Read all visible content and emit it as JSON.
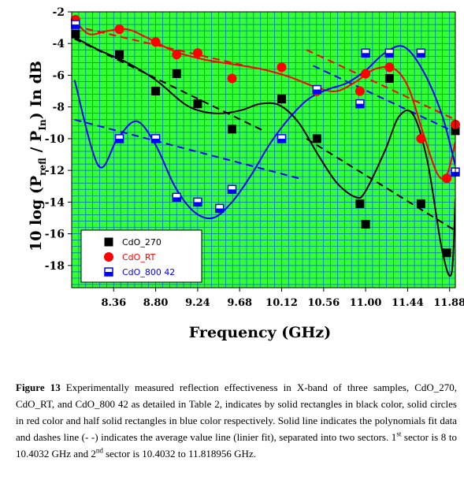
{
  "chart_data": {
    "type": "scatter",
    "xlabel": "Frequency (GHz)",
    "ylabel": "10 log (P_refl / P_in) in dB",
    "xlim": [
      7.92,
      11.94
    ],
    "ylim": [
      -19.4,
      -2
    ],
    "xticks": [
      8.36,
      8.8,
      9.24,
      9.68,
      10.12,
      10.56,
      11.0,
      11.44,
      11.88
    ],
    "xtick_labels": [
      "8.36",
      "8.80",
      "9.24",
      "9.68",
      "10.12",
      "10.56",
      "11.00",
      "11.44",
      "11.88"
    ],
    "yticks": [
      -2,
      -4,
      -6,
      -8,
      -10,
      -12,
      -14,
      -16,
      -18
    ],
    "ytick_labels": [
      "-2",
      "-4",
      "-6",
      "-8",
      "-10",
      "-12",
      "-14",
      "-16",
      "-18"
    ],
    "grid": true,
    "legend_position": "bottom-left",
    "series": [
      {
        "name": "CdO_270",
        "marker": "filled-square",
        "color": "#000000",
        "x": [
          7.96,
          8.42,
          8.8,
          9.02,
          9.24,
          9.6,
          10.12,
          10.49,
          10.94,
          11.0,
          11.25,
          11.58,
          11.85,
          11.94
        ],
        "y": [
          -3.4,
          -4.7,
          -7.0,
          -5.9,
          -7.8,
          -9.4,
          -7.5,
          -10.0,
          -14.1,
          -15.4,
          -6.2,
          -14.1,
          -17.2,
          -9.5
        ],
        "fit_x": [
          7.95,
          8.2,
          8.5,
          8.8,
          9.1,
          9.3,
          9.5,
          9.7,
          9.9,
          10.1,
          10.3,
          10.5,
          10.7,
          10.9,
          11.0,
          11.2,
          11.35,
          11.5,
          11.65,
          11.8,
          11.9,
          11.94
        ],
        "fit_y": [
          -3.6,
          -4.4,
          -5.2,
          -6.3,
          -7.8,
          -8.3,
          -8.4,
          -8.2,
          -7.8,
          -7.9,
          -9.0,
          -11.0,
          -12.8,
          -13.7,
          -13.3,
          -10.8,
          -8.6,
          -8.5,
          -11.5,
          -17.0,
          -18.5,
          -13.8
        ],
        "trend": [
          {
            "x": [
              7.95,
              9.93
            ],
            "y": [
              -3.7,
              -9.5
            ]
          },
          {
            "x": [
              10.38,
              11.94
            ],
            "y": [
              -10.0,
              -15.8
            ]
          }
        ]
      },
      {
        "name": "CdO_RT",
        "marker": "filled-circle",
        "color": "#ff0000",
        "x": [
          7.96,
          8.42,
          8.8,
          9.02,
          9.24,
          9.6,
          10.12,
          10.49,
          10.94,
          11.0,
          11.25,
          11.58,
          11.85,
          11.94
        ],
        "y": [
          -2.5,
          -3.1,
          -3.9,
          -4.7,
          -4.6,
          -6.2,
          -5.5,
          -7.0,
          -7.0,
          -5.9,
          -5.5,
          -10.0,
          -12.5,
          -9.1
        ],
        "fit_x": [
          7.95,
          8.1,
          8.3,
          8.5,
          8.7,
          9.0,
          9.3,
          9.6,
          9.9,
          10.2,
          10.5,
          10.7,
          10.9,
          11.1,
          11.3,
          11.45,
          11.6,
          11.75,
          11.85,
          11.94
        ],
        "fit_y": [
          -2.5,
          -3.4,
          -3.2,
          -3.1,
          -3.6,
          -4.5,
          -5.0,
          -5.3,
          -5.6,
          -6.1,
          -6.8,
          -7.0,
          -6.4,
          -5.6,
          -5.6,
          -6.8,
          -9.6,
          -12.2,
          -12.3,
          -10.2
        ],
        "trend": [
          {
            "x": [
              7.95,
              9.88
            ],
            "y": [
              -2.9,
              -5.6
            ]
          },
          {
            "x": [
              10.38,
              11.94
            ],
            "y": [
              -4.4,
              -8.8
            ]
          }
        ]
      },
      {
        "name": "CdO_800 42",
        "marker": "half-square",
        "color": "#0000ff",
        "x": [
          7.96,
          8.42,
          8.8,
          9.02,
          9.24,
          9.47,
          9.6,
          10.12,
          10.49,
          10.94,
          11.0,
          11.25,
          11.58,
          11.94
        ],
        "y": [
          -2.8,
          -10.0,
          -10.0,
          -13.7,
          -14.0,
          -14.4,
          -13.2,
          -10.0,
          -6.9,
          -7.8,
          -4.6,
          -4.6,
          -4.6,
          -12.1
        ],
        "fit_x": [
          7.95,
          8.2,
          8.4,
          8.6,
          8.8,
          9.0,
          9.2,
          9.4,
          9.6,
          9.8,
          10.0,
          10.2,
          10.4,
          10.6,
          10.8,
          11.0,
          11.2,
          11.4,
          11.6,
          11.8,
          11.94
        ],
        "fit_y": [
          -6.3,
          -11.7,
          -10.0,
          -8.9,
          -10.4,
          -13.0,
          -14.6,
          -15.0,
          -14.0,
          -12.3,
          -10.3,
          -8.7,
          -7.5,
          -6.9,
          -6.5,
          -5.7,
          -4.6,
          -4.2,
          -5.7,
          -8.5,
          -11.7
        ],
        "trend": [
          {
            "x": [
              7.95,
              10.3
            ],
            "y": [
              -8.8,
              -12.5
            ]
          },
          {
            "x": [
              10.45,
              11.94
            ],
            "y": [
              -5.4,
              -9.6
            ]
          }
        ]
      }
    ]
  },
  "caption": {
    "figure_label": "Figure 13",
    "text_part1": " Experimentally measured reflection effectiveness in X-band of three samples, CdO_270, CdO_RT, and CdO_800 42 as detailed in Table 2, indicates by solid rectangles in black color, solid circles in red color and half solid rectangles in blue color respectively. Solid line indicates the polynomials fit data and dashes line (- -) indicates the average value line (linier fit), separated into two sectors. 1",
    "sup1": "st",
    "text_part2": " sector is 8 to 10.4032 GHz and 2",
    "sup2": "nd",
    "text_part3": " sector is 10.4032 to 11.818956 GHz."
  }
}
